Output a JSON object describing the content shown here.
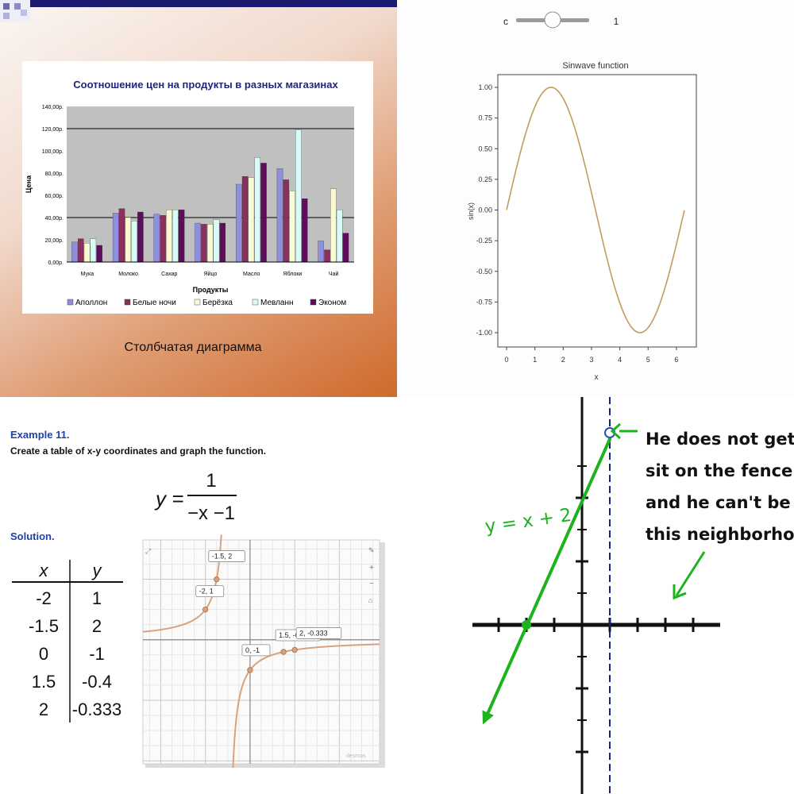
{
  "chart_data": [
    {
      "type": "bar",
      "title": "Соотношение цен на продукты в разных магазинах",
      "caption": "Столбчатая диаграмма",
      "xlabel": "Продукты",
      "ylabel": "Цена",
      "ylim": [
        0,
        140
      ],
      "yticks": [
        "0,00р.",
        "20,00р.",
        "40,00р.",
        "60,00р.",
        "80,00р.",
        "100,00р.",
        "120,00р.",
        "140,00р."
      ],
      "categories": [
        "Мука",
        "Молоко",
        "Сахар",
        "Яйцо",
        "Масло",
        "Яблоки",
        "Чай"
      ],
      "legend_position": "bottom",
      "series": [
        {
          "name": "Аполлон",
          "color": "#8f8fe0",
          "values": [
            18,
            44,
            43,
            35,
            70,
            84,
            19
          ]
        },
        {
          "name": "Белые ночи",
          "color": "#8b2f5f",
          "values": [
            21,
            48,
            42,
            34,
            77,
            74,
            11
          ]
        },
        {
          "name": "Берёзка",
          "color": "#fafad2",
          "values": [
            17,
            40,
            47,
            34,
            76,
            64,
            66
          ]
        },
        {
          "name": "Мевлaнн",
          "color": "#d8fbf8",
          "values": [
            21,
            37,
            47,
            38,
            94,
            119,
            47
          ]
        },
        {
          "name": "Эконом",
          "color": "#5c0e5c",
          "values": [
            15,
            45,
            47,
            35,
            89,
            57,
            26
          ]
        }
      ]
    },
    {
      "type": "line",
      "title": "Sinwave function",
      "xlabel": "x",
      "ylabel": "sin(x)",
      "xlim": [
        0,
        6.28
      ],
      "ylim": [
        -1,
        1
      ],
      "xticks": [
        "0",
        "1",
        "2",
        "3",
        "4",
        "5",
        "6"
      ],
      "yticks": [
        "1.00",
        "0.75",
        "0.50",
        "0.25",
        "0.00",
        "-0.25",
        "-0.50",
        "-0.75",
        "-1.00"
      ],
      "slider": {
        "label": "c",
        "value": "1"
      },
      "series": [
        {
          "function": "sin(x)",
          "color": "#c49a5c"
        }
      ]
    },
    {
      "type": "line",
      "heading": "Example 11.",
      "instruction": "Create a table of x-y coordinates and graph the function.",
      "equation": {
        "lhs": "y =",
        "numerator": "1",
        "denominator": "−x −1"
      },
      "solution_label": "Solution.",
      "table": {
        "headers": [
          "x",
          "y"
        ],
        "rows": [
          [
            "-2",
            "1"
          ],
          [
            "-1.5",
            "2"
          ],
          [
            "0",
            "-1"
          ],
          [
            "1.5",
            "-0.4"
          ],
          [
            "2",
            "-0.333"
          ]
        ]
      },
      "points": [
        {
          "label": "-2, 1",
          "x": -2,
          "y": 1
        },
        {
          "label": "-1.5, 2",
          "x": -1.5,
          "y": 2
        },
        {
          "label": "0, -1",
          "x": 0,
          "y": -1
        },
        {
          "label": "1.5, -0.4",
          "x": 1.5,
          "y": -0.4
        },
        {
          "label": "2, -0.333",
          "x": 2,
          "y": -0.333
        }
      ],
      "xlim": [
        -4.8,
        5.8
      ],
      "ylim": [
        -4.1,
        3.3
      ],
      "curve_color": "#d9a27c",
      "watermark": "desmos"
    },
    {
      "type": "line",
      "equation_label": "y = x + 2",
      "note_lines": [
        "He does not get to",
        "sit on the fence...",
        "and he can't be in",
        "this neighborhood"
      ],
      "asymptote_x": 1,
      "line": {
        "slope": 1,
        "intercept": 2
      },
      "excluded_point": [
        1,
        3
      ],
      "line_color": "#1db31d",
      "xlim": [
        -4.3,
        5.2
      ],
      "ylim": [
        -5.1,
        3.7
      ]
    }
  ]
}
